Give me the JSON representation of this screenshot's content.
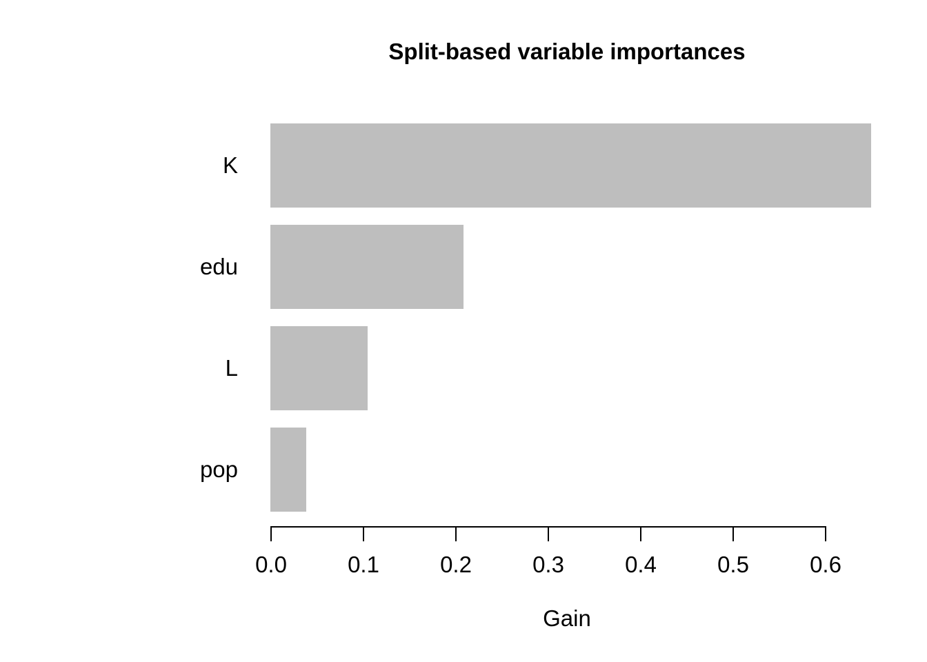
{
  "chart_data": {
    "type": "bar",
    "orientation": "horizontal",
    "title": "Split-based variable importances",
    "xlabel": "Gain",
    "ylabel": "",
    "categories": [
      "K",
      "edu",
      "L",
      "pop"
    ],
    "values": [
      0.65,
      0.209,
      0.105,
      0.039
    ],
    "xlim": [
      0,
      0.6
    ],
    "xticks": [
      0,
      0.1,
      0.2,
      0.3,
      0.4,
      0.5,
      0.6
    ],
    "xtick_labels": [
      "0.0",
      "0.1",
      "0.2",
      "0.3",
      "0.4",
      "0.5",
      "0.6"
    ],
    "grid": false,
    "legend_position": "none",
    "colors": {
      "bar": "#BEBEBE",
      "axis": "#000000",
      "text": "#000000",
      "background": "#FFFFFF"
    }
  }
}
